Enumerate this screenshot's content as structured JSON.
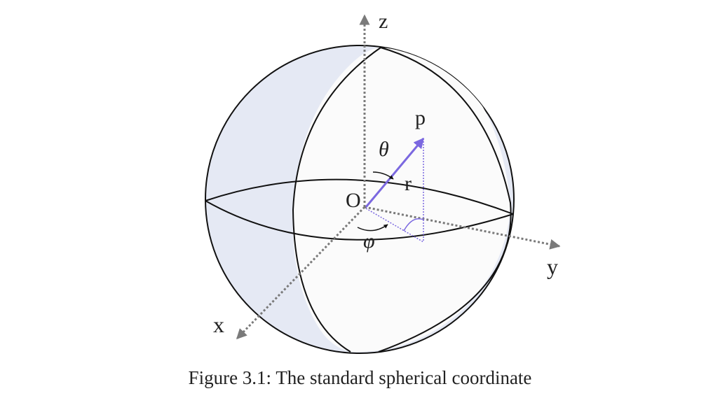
{
  "figure": {
    "axis_z_label": "z",
    "axis_y_label": "y",
    "axis_x_label": "x",
    "origin_label": "O",
    "point_label": "p",
    "radius_label": "r",
    "theta_label": "θ",
    "phi_label": "φ",
    "colors": {
      "sphere_fill": "#e5e9f4",
      "front_fill": "#fbfbfb",
      "outline": "#111111",
      "axis": "#7a7a7a",
      "vector": "#7b68e0",
      "arrow_mark": "#111111"
    }
  },
  "caption": "Figure 3.1: The standard spherical coordinate"
}
